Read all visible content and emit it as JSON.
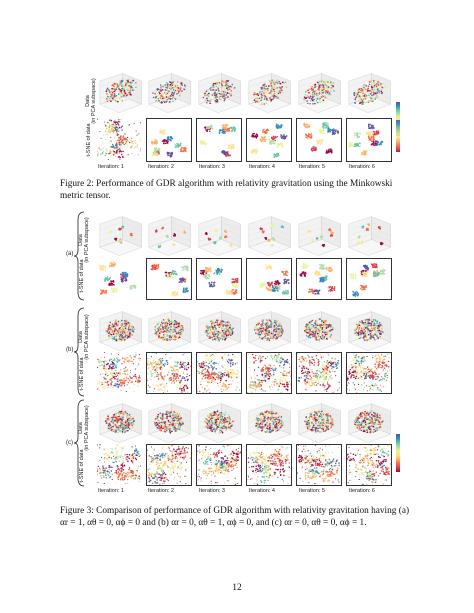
{
  "figure2": {
    "row_labels": {
      "data_line1": "Data",
      "data_line2": "(in PCA subspace)",
      "tsne": "t-SNE of data"
    },
    "iterations": [
      "Iteration: 1",
      "Iteration: 2",
      "Iteration: 3",
      "Iteration: 4",
      "Iteration: 5",
      "Iteration: 6"
    ],
    "caption": "Figure 2: Performance of GDR algorithm with relativity gravitation using the Minkowski metric tensor."
  },
  "figure3": {
    "group_labels": [
      "(a)",
      "(b)",
      "(c)"
    ],
    "row_labels": {
      "data_line1": "Data",
      "data_line2": "(in PCA subspace)",
      "tsne": "t-SNE of data"
    },
    "iterations": [
      "Iteration: 1",
      "Iteration: 2",
      "Iteration: 3",
      "Iteration: 4",
      "Iteration: 5",
      "Iteration: 6"
    ],
    "caption_line1": "Figure 3: Comparison of performance of GDR algorithm with relativity gravitation having (a)",
    "caption_line2": "αr = 1, αθ = 0, αϕ = 0 and (b) αr = 0, αθ = 1, αϕ = 0, and (c) αr = 0, αθ = 0, αϕ = 1."
  },
  "page_number": "12",
  "colors": {
    "palette": [
      "#9e0142",
      "#d53e4f",
      "#f46d43",
      "#fdae61",
      "#fee08b",
      "#e6f598",
      "#abdda4",
      "#66c2a5",
      "#3288bd",
      "#5e4fa2"
    ]
  }
}
